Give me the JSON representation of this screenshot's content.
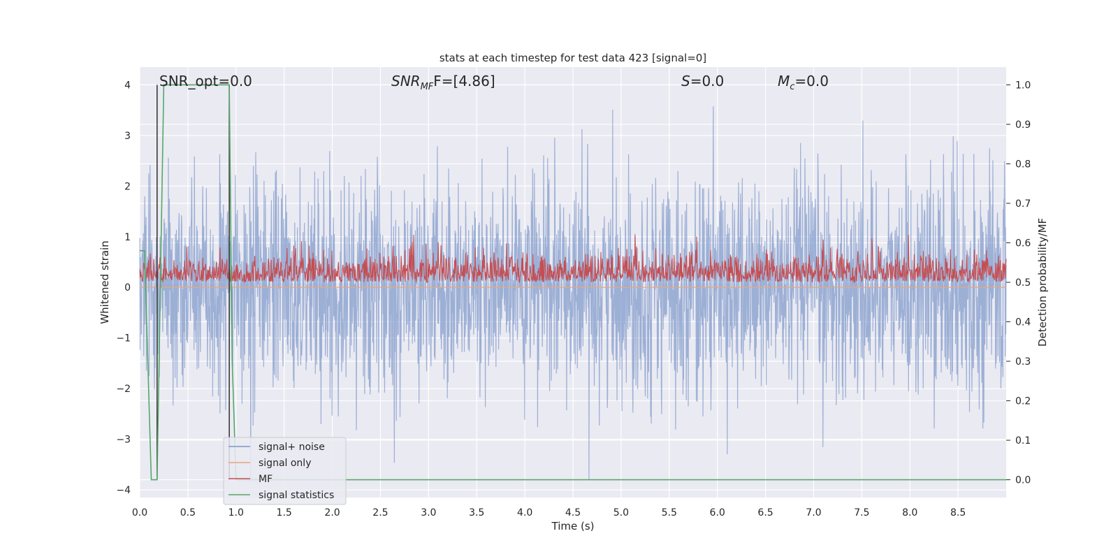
{
  "chart_data": {
    "type": "line",
    "title": "stats at each timestep for test data 423 [signal=0]",
    "xlabel": "Time (s)",
    "ylabel": "Whitened strain",
    "ylabel_right": "Detection probability/MF",
    "xlim": [
      0.0,
      9.0
    ],
    "ylim": [
      -4.15,
      4.35
    ],
    "ylim_right": [
      -0.045,
      1.045
    ],
    "xticks": [
      "0.0",
      "0.5",
      "1.0",
      "1.5",
      "2.0",
      "2.5",
      "3.0",
      "3.5",
      "4.0",
      "4.5",
      "5.0",
      "5.5",
      "6.0",
      "6.5",
      "7.0",
      "7.5",
      "8.0",
      "8.5"
    ],
    "yticks": [
      "4",
      "3",
      "2",
      "1",
      "0",
      "−1",
      "−2",
      "−3",
      "−4"
    ],
    "yticks_right": [
      "1.0",
      "0.9",
      "0.8",
      "0.7",
      "0.6",
      "0.5",
      "0.4",
      "0.3",
      "0.2",
      "0.1",
      "0.0"
    ],
    "grid": true,
    "legend_position": "lower-left",
    "annotations": {
      "snr_opt": {
        "prefix": "SNR_opt=",
        "value": "0.0"
      },
      "snr_mf": {
        "var": "SNR",
        "sub": "MF",
        "suffix": "F=[4.86]"
      },
      "s": {
        "var": "S",
        "suffix": "=0.0"
      },
      "mc": {
        "var": "M",
        "sub": "c",
        "suffix": "=0.0"
      }
    },
    "series": [
      {
        "name": "signal+ noise",
        "color": "#7b96c9",
        "axis": "left",
        "kind": "noise",
        "amplitude_range": [
          -3.8,
          4.0
        ]
      },
      {
        "name": "signal only",
        "color": "#eaa57c",
        "axis": "left",
        "values": [
          0,
          0
        ]
      },
      {
        "name": "MF",
        "color": "#c44e52",
        "axis": "right",
        "kind": "noise",
        "range": [
          0.5,
          0.62
        ]
      },
      {
        "name": "signal statistics",
        "color": "#55a868",
        "axis": "right",
        "x": [
          0.0,
          0.05,
          0.12,
          0.18,
          0.25,
          0.93,
          0.96,
          1.0,
          9.0
        ],
        "values": [
          0.58,
          0.58,
          0.0,
          0.0,
          1.0,
          1.0,
          0.3,
          0.0,
          0.0
        ]
      },
      {
        "name": "",
        "color": "#3a3a3a",
        "axis": "right",
        "kind": "markers",
        "x": [
          0.18,
          0.93
        ]
      }
    ]
  }
}
